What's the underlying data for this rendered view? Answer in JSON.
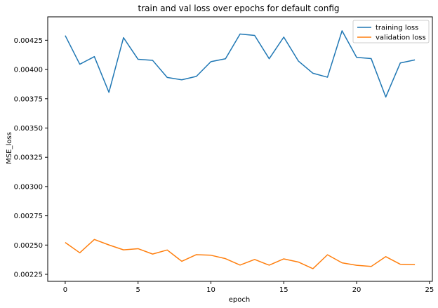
{
  "chart_data": {
    "type": "line",
    "title": "train and val loss over epochs for default config",
    "xlabel": "epoch",
    "ylabel": "MSE_loss",
    "xlim": [
      -1.2,
      25.2
    ],
    "ylim": [
      0.00219,
      0.00445
    ],
    "xticks": [
      0,
      5,
      10,
      15,
      20,
      25
    ],
    "yticks": [
      0.00225,
      0.0025,
      0.00275,
      0.003,
      0.00325,
      0.0035,
      0.00375,
      0.004,
      0.00425
    ],
    "ytick_labels": [
      "0.00225",
      "0.00250",
      "0.00275",
      "0.00300",
      "0.00325",
      "0.00350",
      "0.00375",
      "0.00400",
      "0.00425"
    ],
    "xtick_labels": [
      "0",
      "5",
      "10",
      "15",
      "20",
      "25"
    ],
    "legend_position": "top-right",
    "grid": false,
    "x": [
      0,
      1,
      2,
      3,
      4,
      5,
      6,
      7,
      8,
      9,
      10,
      11,
      12,
      13,
      14,
      15,
      16,
      17,
      18,
      19,
      20,
      21,
      22,
      23,
      24
    ],
    "series": [
      {
        "name": "training loss",
        "color": "#1f77b4",
        "values": [
          0.00429,
          0.004045,
          0.00411,
          0.003805,
          0.004272,
          0.004087,
          0.004078,
          0.003932,
          0.003912,
          0.003941,
          0.004067,
          0.004092,
          0.004303,
          0.004291,
          0.004092,
          0.004277,
          0.004073,
          0.003968,
          0.003934,
          0.004331,
          0.004104,
          0.004093,
          0.003765,
          0.004056,
          0.004082
        ]
      },
      {
        "name": "validation loss",
        "color": "#ff7f0e",
        "values": [
          0.002522,
          0.002434,
          0.002548,
          0.002501,
          0.002459,
          0.002469,
          0.002423,
          0.002458,
          0.002361,
          0.002418,
          0.002413,
          0.002384,
          0.002329,
          0.002377,
          0.002328,
          0.002382,
          0.002355,
          0.002298,
          0.002417,
          0.002348,
          0.002327,
          0.002317,
          0.002401,
          0.002336,
          0.002332
        ]
      }
    ]
  }
}
